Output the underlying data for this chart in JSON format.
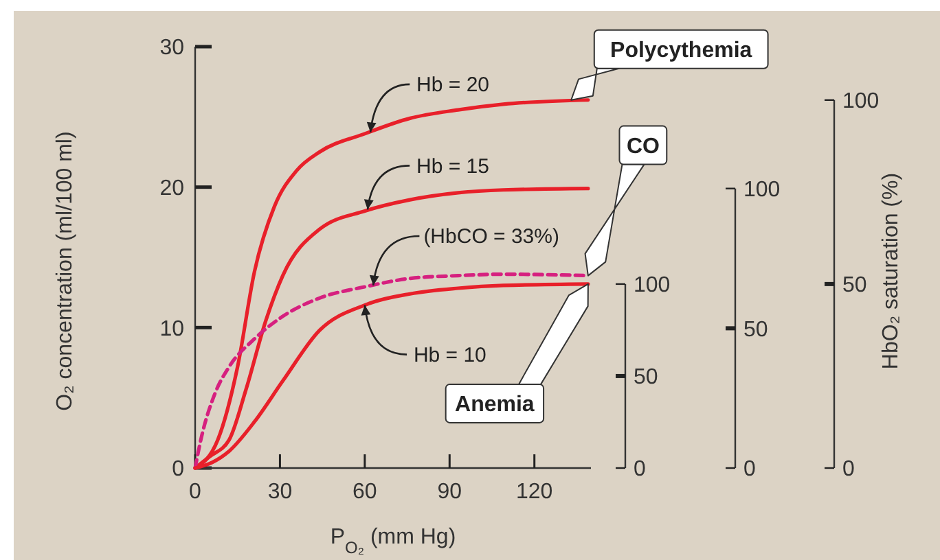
{
  "chart_data": {
    "type": "line",
    "xlabel": "P$_{O₂}$ (mm Hg)",
    "ylabel": "O₂ concentration (ml/100 ml)",
    "y2label": "HbO₂ saturation (%)",
    "xlim": [
      0,
      140
    ],
    "xticks": [
      0,
      30,
      60,
      90,
      120
    ],
    "ylim": [
      0,
      30
    ],
    "yticks": [
      0,
      10,
      20,
      30
    ],
    "y2lim": [
      0,
      100
    ],
    "y2ticks": [
      0,
      50,
      100
    ],
    "y3lim": [
      0,
      100
    ],
    "y3ticks": [
      0,
      50,
      100
    ],
    "grid": false,
    "marker": "none",
    "series": [
      {
        "color": "#e8202a",
        "line_style": "solid",
        "x": [
          0,
          8,
          15,
          21,
          28,
          36,
          44,
          60,
          76,
          93,
          109,
          139
        ],
        "values": [
          0,
          2.0,
          7.2,
          14,
          18.6,
          21.2,
          22.5,
          23.8,
          24.9,
          25.5,
          25.9,
          26.2
        ]
      },
      {
        "color": "#e8202a",
        "line_style": "solid",
        "x": [
          0,
          5,
          12,
          18,
          25,
          31,
          44,
          60,
          76,
          93,
          109,
          139
        ],
        "values": [
          0,
          0.8,
          2.0,
          5.6,
          10.5,
          13.7,
          17.0,
          18.3,
          19.1,
          19.6,
          19.8,
          19.9
        ]
      },
      {
        "color": "#d6207f",
        "line_style": "dashed",
        "x": [
          0,
          2,
          7,
          12,
          21,
          31,
          44,
          60,
          76,
          93,
          109,
          139
        ],
        "values": [
          0,
          2.0,
          5.3,
          7.2,
          9.2,
          10.8,
          12.1,
          12.9,
          13.5,
          13.7,
          13.8,
          13.7
        ]
      },
      {
        "color": "#e8202a",
        "line_style": "solid",
        "x": [
          0,
          6,
          12,
          21,
          31,
          44,
          60,
          76,
          93,
          109,
          139
        ],
        "values": [
          0,
          0.4,
          1.2,
          3.3,
          6.2,
          9.8,
          11.6,
          12.4,
          12.8,
          13.0,
          13.1
        ]
      }
    ],
    "annotations": [
      {
        "text": "Hb = 20",
        "x": 62,
        "y": 23.9
      },
      {
        "text": "Hb = 15",
        "x": 61,
        "y": 18.4
      },
      {
        "text": "(HbCO = 33%)",
        "x": 63,
        "y": 13.0
      },
      {
        "text": "Hb = 10",
        "x": 60,
        "y": 11.6
      },
      {
        "text": "Polycythemia",
        "x": 133,
        "y": 26.2
      },
      "CO",
      "Anemia",
      "100",
      "50",
      "0"
    ]
  }
}
